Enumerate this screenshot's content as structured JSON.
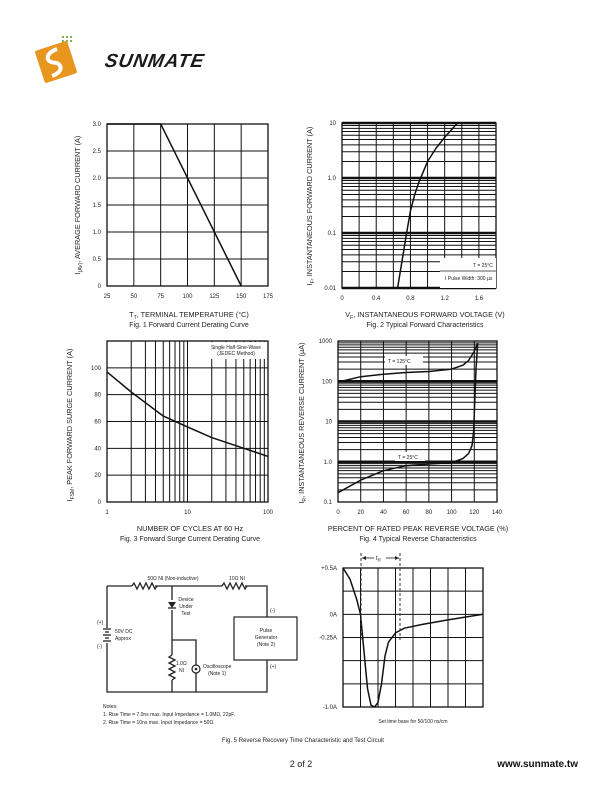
{
  "logo": {
    "text": "SUNMATE",
    "colors": {
      "orange": "#e8961e",
      "text": "#1a1a1a"
    }
  },
  "fig1": {
    "caption": "Fig. 1  Forward Current Derating Curve",
    "ylabel_main": "I",
    "ylabel_sub": "(AV)",
    "ylabel_rest": ", AVERAGE FORWARD CURRENT (A)",
    "xlabel_main": "T",
    "xlabel_sub": "T",
    "xlabel_rest": ", TERMINAL TEMPERATURE (°C)"
  },
  "fig2": {
    "caption": "Fig. 2  Typical Forward Characteristics",
    "ylabel_main": "I",
    "ylabel_sub": "F",
    "ylabel_rest": ", INSTANTANEOUS FORWARD CURRENT (A)",
    "xlabel_main": "V",
    "xlabel_sub": "F",
    "xlabel_rest": ", INSTANTANEOUS FORWARD VOLTAGE (V)",
    "legend_line1": "T  = 25°C",
    "legend_line1_sub": "j",
    "legend_line2": "I  Pulse Width: 300 µs",
    "legend_line2_sub": "F"
  },
  "fig3": {
    "caption": "Fig. 3  Forward Surge Current Derating Curve",
    "ylabel_main": "I",
    "ylabel_sub": "FSM",
    "ylabel_rest": ", PEAK FORWARD SURGE CURRENT (A)",
    "xlabel": "NUMBER OF CYCLES AT 60 Hz",
    "legend_line1": "Single Half-Sine-Wave",
    "legend_line2": "(JEDEC Method)"
  },
  "fig4": {
    "caption": "Fig. 4  Typical Reverse Characteristics",
    "ylabel_main": "I",
    "ylabel_sub": "R",
    "ylabel_rest": ", INSTANTANEOUS REVERSE CURRENT (µA)",
    "xlabel": "PERCENT OF RATED PEAK REVERSE VOLTAGE (%)",
    "label_125": "T  = 125°C",
    "label_25": "T  = 25°C",
    "label_sub": "j"
  },
  "fig5": {
    "caption": "Fig. 5  Reverse Recovery Time Characteristic and Test Circuit",
    "circuit": {
      "r1": "50Ω NI (Non-inductive)",
      "r2": "10Ω NI",
      "dut": [
        "Device",
        "Under",
        "Test"
      ],
      "battery": [
        "50V DC",
        "Approx"
      ],
      "batt_plus": "(+)",
      "batt_minus": "(-)",
      "gen": [
        "Pulse",
        "Generator",
        "(Note 2)"
      ],
      "gen_minus": "(-)",
      "gen_plus": "(+)",
      "r3": [
        "1.0Ω",
        "NI"
      ],
      "scope": [
        "Oscilloscope",
        "(Note 1)"
      ]
    },
    "notes": [
      "Notes:",
      "1. Rise Time = 7.0ns max. Input Impedance = 1.0MΩ, 22pF.",
      "2. Rise Time = 10ns max. Input Impedance = 50Ω."
    ],
    "wave_note": "Set time base for 50/100 ns/cm",
    "trr_main": "t",
    "trr_sub": "rr"
  },
  "chart_data": [
    {
      "type": "line",
      "title": "Fig. 1  Forward Current Derating Curve",
      "xlabel": "TT, TERMINAL TEMPERATURE (°C)",
      "ylabel": "I(AV), AVERAGE FORWARD CURRENT (A)",
      "xlim": [
        25,
        175
      ],
      "ylim": [
        0,
        3
      ],
      "x_ticks": [
        "25",
        "50",
        "75",
        "100",
        "125",
        "150",
        "175"
      ],
      "y_ticks": [
        "0",
        "0.5",
        "1.0",
        "1.5",
        "2.0",
        "2.5",
        "3.0"
      ],
      "grid": true,
      "x": [
        25,
        75,
        150
      ],
      "y": [
        3.0,
        3.0,
        0
      ]
    },
    {
      "type": "line",
      "title": "Fig. 2  Typical Forward Characteristics",
      "xlabel": "VF, INSTANTANEOUS FORWARD VOLTAGE (V)",
      "ylabel": "IF, INSTANTANEOUS FORWARD CURRENT (A)",
      "xlim": [
        0,
        1.8
      ],
      "ylim": [
        0.01,
        10
      ],
      "yscale": "log",
      "x_ticks": [
        "0",
        "0.4",
        "0.8",
        "1.2",
        "1.6"
      ],
      "y_ticks": [
        "0.01",
        "0.1",
        "1.0",
        "10"
      ],
      "grid": true,
      "x": [
        0.65,
        0.7,
        0.75,
        0.8,
        0.85,
        0.9,
        1.0,
        1.1,
        1.2,
        1.35
      ],
      "y": [
        0.01,
        0.03,
        0.09,
        0.25,
        0.5,
        0.85,
        2.0,
        3.5,
        5.5,
        10
      ]
    },
    {
      "type": "line",
      "title": "Fig. 3  Forward Surge Current Derating Curve",
      "xlabel": "NUMBER OF CYCLES AT 60 Hz",
      "ylabel": "IFSM, PEAK FORWARD SURGE CURRENT (A)",
      "xlim": [
        1,
        100
      ],
      "xscale": "log",
      "ylim": [
        0,
        120
      ],
      "x_ticks": [
        "1",
        "10",
        "100"
      ],
      "y_ticks": [
        "0",
        "20",
        "40",
        "60",
        "80",
        "100"
      ],
      "grid": true,
      "x": [
        1,
        2,
        3,
        5,
        10,
        20,
        50,
        100
      ],
      "y": [
        97,
        82,
        74,
        64,
        56,
        48,
        40,
        34
      ]
    },
    {
      "type": "line",
      "title": "Fig. 4  Typical Reverse Characteristics",
      "xlabel": "PERCENT OF RATED PEAK REVERSE VOLTAGE (%)",
      "ylabel": "IR, INSTANTANEOUS REVERSE CURRENT (µA)",
      "xlim": [
        0,
        140
      ],
      "ylim": [
        0.1,
        1000
      ],
      "yscale": "log",
      "x_ticks": [
        "0",
        "20",
        "40",
        "60",
        "80",
        "100",
        "120",
        "140"
      ],
      "y_ticks": [
        "0.1",
        "1.0",
        "10",
        "100",
        "1000"
      ],
      "grid": true,
      "series": [
        {
          "name": "Tj = 125°C",
          "x": [
            0,
            20,
            40,
            60,
            80,
            100,
            110,
            115,
            120,
            123
          ],
          "y": [
            95,
            130,
            150,
            165,
            175,
            200,
            250,
            330,
            550,
            900
          ]
        },
        {
          "name": "Tj = 25°C",
          "x": [
            0,
            20,
            40,
            60,
            80,
            100,
            110,
            115,
            118,
            119.5,
            120.5,
            121.5,
            123
          ],
          "y": [
            0.17,
            0.35,
            0.6,
            0.8,
            0.88,
            0.95,
            1.2,
            1.6,
            2.5,
            6,
            40,
            200,
            900
          ]
        }
      ]
    },
    {
      "type": "line",
      "title": "Fig. 5  Reverse Recovery Time Characteristic",
      "y_ticks": [
        "+0.5A",
        "0A",
        "-0.25A",
        "-1.0A"
      ],
      "ylim": [
        -1.0,
        0.5
      ],
      "grid": true,
      "x": [
        0,
        0.4,
        0.8,
        1.0,
        1.2,
        1.4,
        1.6,
        1.8,
        2.0,
        2.2,
        2.4,
        2.6,
        3.0,
        3.5,
        4.5,
        6,
        8
      ],
      "y": [
        0.5,
        0.38,
        0.15,
        0,
        -0.4,
        -0.8,
        -0.98,
        -1.0,
        -0.95,
        -0.75,
        -0.45,
        -0.3,
        -0.2,
        -0.15,
        -0.11,
        -0.06,
        0
      ]
    }
  ],
  "footer": {
    "page": "2 of 2",
    "website": "www.sunmate.tw"
  }
}
